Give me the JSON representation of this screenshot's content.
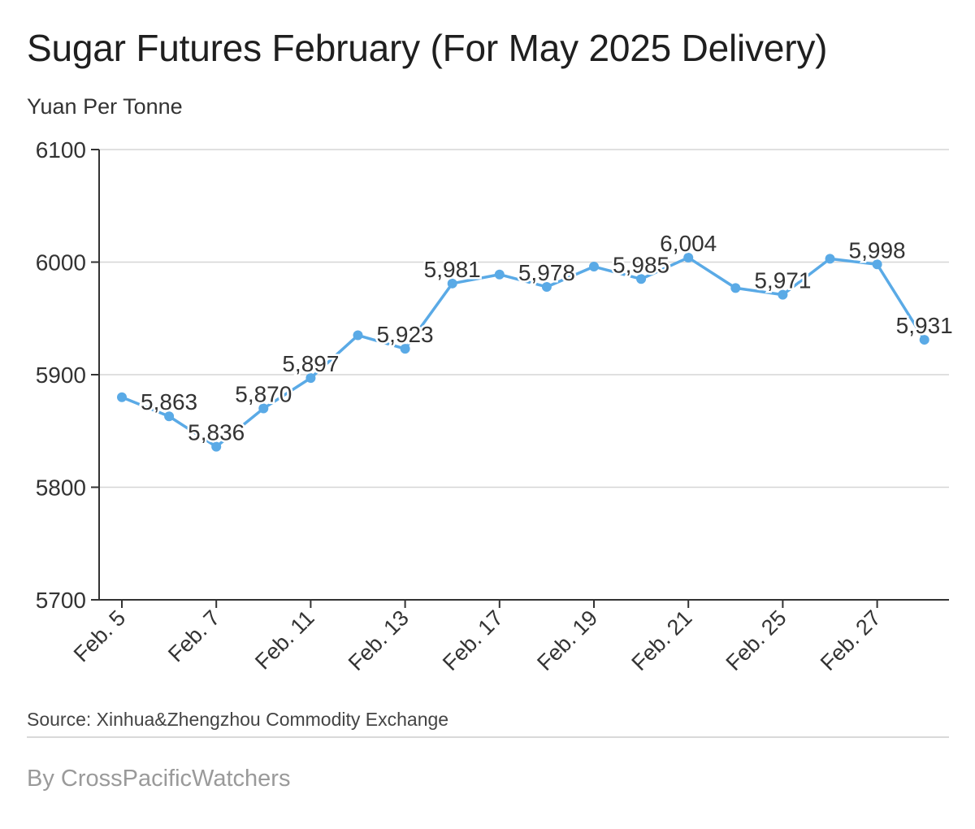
{
  "header": {
    "title": "Sugar Futures February (For May 2025 Delivery)",
    "unit_label": "Yuan Per Tonne"
  },
  "footer": {
    "source": "Source: Xinhua&Zhengzhou Commodity Exchange",
    "byline": "By CrossPacificWatchers"
  },
  "chart_data": {
    "type": "line",
    "title": "Sugar Futures February (For May 2025 Delivery)",
    "ylabel": "Yuan Per Tonne",
    "xlabel": "",
    "ylim": [
      5700,
      6100
    ],
    "yticks": [
      5700,
      5800,
      5900,
      6000,
      6100
    ],
    "grid": true,
    "line_color": "#5aaae6",
    "x": [
      "Feb. 5",
      "Feb. 6",
      "Feb. 7",
      "Feb. 10",
      "Feb. 11",
      "Feb. 12",
      "Feb. 13",
      "Feb. 14",
      "Feb. 17",
      "Feb. 18",
      "Feb. 19",
      "Feb. 20",
      "Feb. 21",
      "Feb. 24",
      "Feb. 25",
      "Feb. 26",
      "Feb. 27",
      "Feb. 28"
    ],
    "x_tick_labels": [
      "Feb. 5",
      "",
      "Feb. 7",
      "",
      "Feb. 11",
      "",
      "Feb. 13",
      "",
      "Feb. 17",
      "",
      "Feb. 19",
      "",
      "Feb. 21",
      "",
      "Feb. 25",
      "",
      "Feb. 27",
      ""
    ],
    "series": [
      {
        "values": [
          5880,
          5863,
          5836,
          5870,
          5897,
          5935,
          5923,
          5981,
          5989,
          5978,
          5996,
          5985,
          6004,
          5977,
          5971,
          6003,
          5998,
          5931
        ],
        "data_labels": [
          "",
          "5,863",
          "5,836",
          "5,870",
          "5,897",
          "",
          "5,923",
          "5,981",
          "",
          "5,978",
          "",
          "5,985",
          "6,004",
          "",
          "5,971",
          "",
          "5,998",
          "5,931"
        ]
      }
    ]
  }
}
